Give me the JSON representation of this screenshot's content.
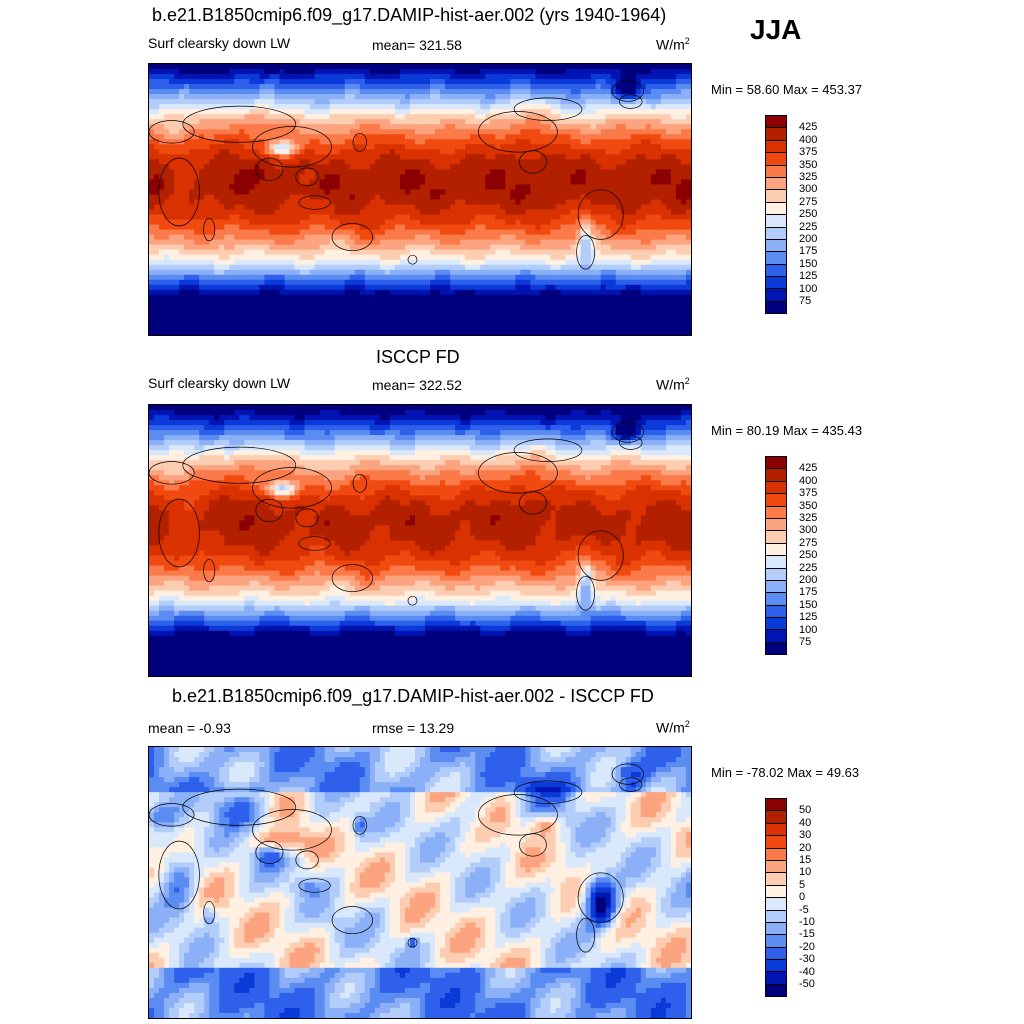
{
  "season": "JJA",
  "panels": [
    {
      "id": "model",
      "title": "b.e21.B1850cmip6.f09_g17.DAMIP-hist-aer.002 (yrs 1940-1964)",
      "left_label": "Surf clearsky down LW",
      "center_label": "mean= 321.58",
      "units": "W/m",
      "units_sup": "2",
      "minmax": "Min =  58.60 Max = 453.37",
      "colorbar": {
        "labels": [
          "425",
          "400",
          "375",
          "350",
          "325",
          "300",
          "275",
          "250",
          "225",
          "200",
          "175",
          "150",
          "125",
          "100",
          "75"
        ],
        "colors": [
          "#8b0000",
          "#b22000",
          "#d93200",
          "#f04a10",
          "#fb7a4a",
          "#fca37f",
          "#fdcdb2",
          "#fff0e2",
          "#d9e8fb",
          "#b3cdfa",
          "#8bb0f7",
          "#5a8cf2",
          "#2e60ec",
          "#0a3ad8",
          "#0014b4",
          "#00007f"
        ]
      },
      "field": {
        "type": "clearsky_lw",
        "bias": 0
      }
    },
    {
      "id": "obs",
      "title": "ISCCP FD",
      "left_label": "Surf clearsky down LW",
      "center_label": "mean= 322.52",
      "units": "W/m",
      "units_sup": "2",
      "minmax": "Min =  80.19 Max = 435.43",
      "colorbar": {
        "labels": [
          "425",
          "400",
          "375",
          "350",
          "325",
          "300",
          "275",
          "250",
          "225",
          "200",
          "175",
          "150",
          "125",
          "100",
          "75"
        ],
        "colors": [
          "#8b0000",
          "#b22000",
          "#d93200",
          "#f04a10",
          "#fb7a4a",
          "#fca37f",
          "#fdcdb2",
          "#fff0e2",
          "#d9e8fb",
          "#b3cdfa",
          "#8bb0f7",
          "#5a8cf2",
          "#2e60ec",
          "#0a3ad8",
          "#0014b4",
          "#00007f"
        ]
      },
      "field": {
        "type": "clearsky_lw",
        "bias": -1
      }
    },
    {
      "id": "diff",
      "title": "b.e21.B1850cmip6.f09_g17.DAMIP-hist-aer.002 - ISCCP FD",
      "left_label": "mean =  -0.93",
      "center_label": "rmse =  13.29",
      "units": "W/m",
      "units_sup": "2",
      "minmax": "Min = -78.02 Max =  49.63",
      "colorbar": {
        "labels": [
          "50",
          "40",
          "30",
          "20",
          "15",
          "10",
          "5",
          "0",
          "-5",
          "-10",
          "-15",
          "-20",
          "-30",
          "-40",
          "-50"
        ],
        "colors": [
          "#8b0000",
          "#b22000",
          "#d93200",
          "#f04a10",
          "#fb7a4a",
          "#fca37f",
          "#fdcdb2",
          "#fff0e2",
          "#d9e8fb",
          "#b3cdfa",
          "#8bb0f7",
          "#5a8cf2",
          "#2e60ec",
          "#0a3ad8",
          "#0014b4",
          "#00007f"
        ]
      },
      "field": {
        "type": "difference",
        "bias": 0
      }
    }
  ],
  "chart_data": [
    {
      "type": "heatmap",
      "title": "b.e21.B1850cmip6.f09_g17.DAMIP-hist-aer.002 (yrs 1940-1964)",
      "variable": "Surf clearsky down LW",
      "season": "JJA",
      "units": "W/m2",
      "mean": 321.58,
      "min": 58.6,
      "max": 453.37,
      "contour_levels": [
        75,
        100,
        125,
        150,
        175,
        200,
        225,
        250,
        275,
        300,
        325,
        350,
        375,
        400,
        425
      ]
    },
    {
      "type": "heatmap",
      "title": "ISCCP FD",
      "variable": "Surf clearsky down LW",
      "season": "JJA",
      "units": "W/m2",
      "mean": 322.52,
      "min": 80.19,
      "max": 435.43,
      "contour_levels": [
        75,
        100,
        125,
        150,
        175,
        200,
        225,
        250,
        275,
        300,
        325,
        350,
        375,
        400,
        425
      ]
    },
    {
      "type": "heatmap",
      "title": "b.e21.B1850cmip6.f09_g17.DAMIP-hist-aer.002 - ISCCP FD",
      "season": "JJA",
      "units": "W/m2",
      "mean": -0.93,
      "rmse": 13.29,
      "min": -78.02,
      "max": 49.63,
      "contour_levels": [
        -50,
        -40,
        -30,
        -20,
        -15,
        -10,
        -5,
        0,
        5,
        10,
        15,
        20,
        30,
        40,
        50
      ]
    }
  ]
}
